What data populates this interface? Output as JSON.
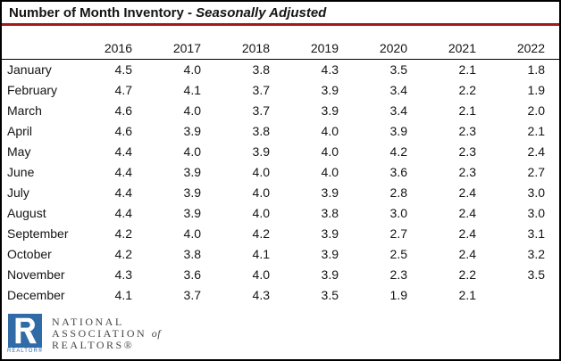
{
  "title": {
    "main": "Number of Month Inventory - ",
    "emphasis": "Seasonally Adjusted"
  },
  "chart_data": {
    "type": "table",
    "title": "Number of Month Inventory - Seasonally Adjusted",
    "columns": [
      "2016",
      "2017",
      "2018",
      "2019",
      "2020",
      "2021",
      "2022"
    ],
    "row_header_label": "",
    "rows": [
      {
        "month": "January",
        "values": [
          "4.5",
          "4.0",
          "3.8",
          "4.3",
          "3.5",
          "2.1",
          "1.8"
        ]
      },
      {
        "month": "February",
        "values": [
          "4.7",
          "4.1",
          "3.7",
          "3.9",
          "3.4",
          "2.2",
          "1.9"
        ]
      },
      {
        "month": "March",
        "values": [
          "4.6",
          "4.0",
          "3.7",
          "3.9",
          "3.4",
          "2.1",
          "2.0"
        ]
      },
      {
        "month": "April",
        "values": [
          "4.6",
          "3.9",
          "3.8",
          "4.0",
          "3.9",
          "2.3",
          "2.1"
        ]
      },
      {
        "month": "May",
        "values": [
          "4.4",
          "4.0",
          "3.9",
          "4.0",
          "4.2",
          "2.3",
          "2.4"
        ]
      },
      {
        "month": "June",
        "values": [
          "4.4",
          "3.9",
          "4.0",
          "4.0",
          "3.6",
          "2.3",
          "2.7"
        ]
      },
      {
        "month": "July",
        "values": [
          "4.4",
          "3.9",
          "4.0",
          "3.9",
          "2.8",
          "2.4",
          "3.0"
        ]
      },
      {
        "month": "August",
        "values": [
          "4.4",
          "3.9",
          "4.0",
          "3.8",
          "3.0",
          "2.4",
          "3.0"
        ]
      },
      {
        "month": "September",
        "values": [
          "4.2",
          "4.0",
          "4.2",
          "3.9",
          "2.7",
          "2.4",
          "3.1"
        ]
      },
      {
        "month": "October",
        "values": [
          "4.2",
          "3.8",
          "4.1",
          "3.9",
          "2.5",
          "2.4",
          "3.2"
        ]
      },
      {
        "month": "November",
        "values": [
          "4.3",
          "3.6",
          "4.0",
          "3.9",
          "2.3",
          "2.2",
          "3.5"
        ]
      },
      {
        "month": "December",
        "values": [
          "4.1",
          "3.7",
          "4.3",
          "3.5",
          "1.9",
          "2.1",
          ""
        ]
      }
    ]
  },
  "footer_logo": {
    "realtor_label": "REALTOR®",
    "org_line1": "NATIONAL",
    "org_line2_main": "ASSOCIATION ",
    "org_line2_of": "of",
    "org_line3": "REALTORS®"
  },
  "colors": {
    "accent_red": "#A31A1A",
    "logo_blue": "#306BA8",
    "org_text_gray": "#474747"
  }
}
